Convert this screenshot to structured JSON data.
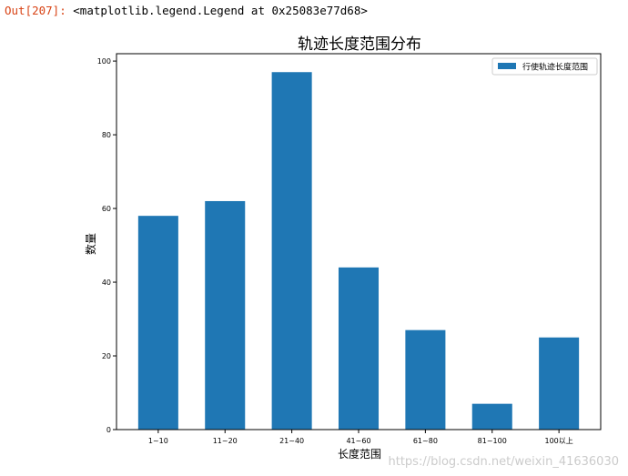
{
  "cell": {
    "prompt": "Out[207]:",
    "output_text": "<matplotlib.legend.Legend at 0x25083e77d68>"
  },
  "watermark": "https://blog.csdn.net/weixin_41636030",
  "colors": {
    "bar": "#1f77b4",
    "axis": "#000000"
  },
  "chart_data": {
    "type": "bar",
    "title": "轨迹长度范围分布",
    "xlabel": "长度范围",
    "ylabel": "数量",
    "categories": [
      "1~10",
      "11~20",
      "21~40",
      "41~60",
      "61~80",
      "81~100",
      "100以上"
    ],
    "series": [
      {
        "name": "行使轨迹长度范围",
        "values": [
          58,
          62,
          97,
          44,
          27,
          7,
          25
        ]
      }
    ],
    "ylim": [
      0,
      102
    ],
    "yticks": [
      0,
      20,
      40,
      60,
      80,
      100
    ],
    "grid": false,
    "legend": "top-right"
  }
}
